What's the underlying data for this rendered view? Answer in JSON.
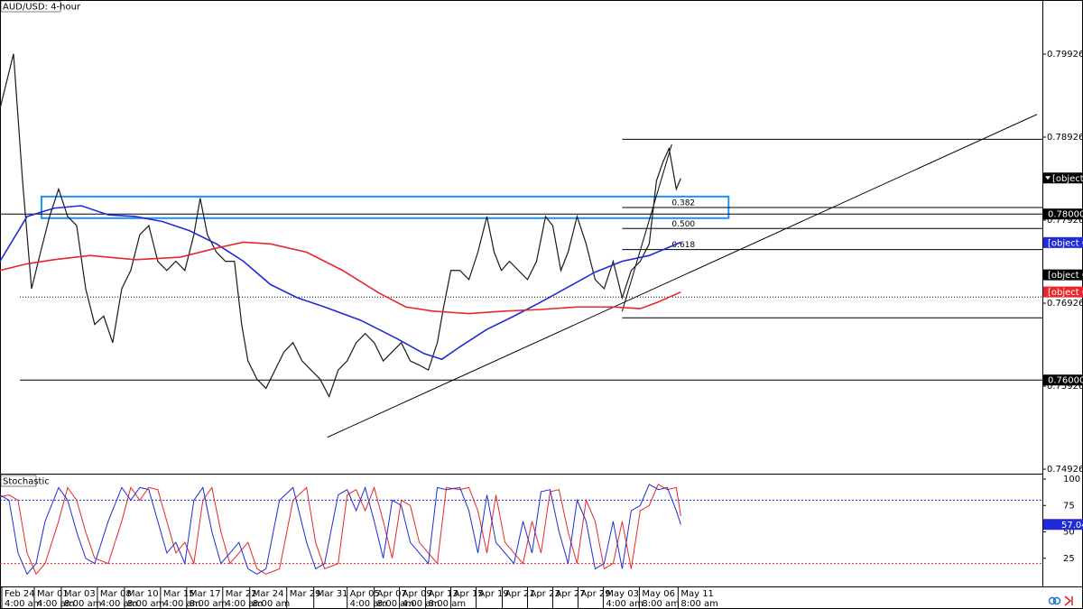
{
  "chart_data": [
    {
      "type": "price",
      "title": "AUD/USD: 4-hour",
      "xlim": [
        0,
        289
      ],
      "ylim": [
        0.74872,
        0.80578
      ],
      "yticks": [
        0.79926,
        0.78926,
        0.77926,
        0.76926,
        0.75926,
        0.74926
      ],
      "xticks": [
        {
          "value": 0.5,
          "label": "Feb 24"
        },
        {
          "value": 9.5,
          "label": "Mar 01"
        },
        {
          "value": 17,
          "label": "Mar 03"
        },
        {
          "value": 27,
          "label": "Mar 08"
        },
        {
          "value": 34.5,
          "label": "Mar 10"
        },
        {
          "value": 44.5,
          "label": "Mar 15"
        },
        {
          "value": 51.75,
          "label": "Mar 17"
        },
        {
          "value": 61.75,
          "label": "Mar 22"
        },
        {
          "value": 69.25,
          "label": "Mar 24"
        },
        {
          "value": 79.5,
          "label": "Mar 29"
        },
        {
          "value": 87,
          "label": "Mar 31"
        },
        {
          "value": 96.25,
          "label": "Apr 05"
        },
        {
          "value": 103.75,
          "label": "Apr 07"
        },
        {
          "value": 110.75,
          "label": "Apr 09"
        },
        {
          "value": 118,
          "label": "Apr 13"
        },
        {
          "value": 125,
          "label": "Apr 15"
        },
        {
          "value": 132,
          "label": "Apr 19"
        },
        {
          "value": 139.25,
          "label": "Apr 21"
        },
        {
          "value": 146.25,
          "label": "Apr 23"
        },
        {
          "value": 153.25,
          "label": "Apr 27"
        },
        {
          "value": 160.25,
          "label": "Apr 29"
        },
        {
          "value": 167.25,
          "label": "May 03"
        },
        {
          "value": 177.25,
          "label": "May 06"
        },
        {
          "value": 188,
          "label": "May 11"
        }
      ],
      "xtick_times": [
        "4:00 am",
        "4:00 am",
        "8:00 am",
        "4:00 am",
        "8:00 am",
        "4:00 am",
        "8:00 am",
        "4:00 am",
        "8:00 am",
        null,
        null,
        "4:00 am",
        "8:00 am",
        "4:00 am",
        "8:00 am",
        null,
        null,
        null,
        null,
        null,
        null,
        "4:00 am",
        "8:00 am",
        "8:00 am"
      ],
      "series": [
        {
          "name": "AUD/USD",
          "color": "#1a1a1a",
          "x": [
            0,
            3.75,
            6.25,
            8.75,
            11.25,
            13.75,
            16.25,
            18.75,
            21.25,
            23.75,
            26.25,
            28.75,
            31.25,
            33.75,
            36.25,
            38.75,
            41.25,
            43.75,
            46.25,
            48.75,
            51.25,
            53.75,
            55.5,
            57.5,
            60,
            62.5,
            65,
            67,
            68.75,
            71.25,
            73.75,
            76.25,
            78.75,
            81.25,
            83.75,
            86.25,
            88.75,
            91.25,
            93.75,
            96.25,
            98.75,
            101.25,
            103.75,
            106.25,
            108.75,
            111.25,
            113.75,
            116.25,
            118.75,
            121.25,
            123,
            125,
            127.5,
            130,
            132.5,
            135,
            137,
            139,
            141.25,
            143.75,
            146.25,
            148.75,
            151.25,
            153.25,
            155.5,
            157.5,
            160,
            162.5,
            165,
            167.5,
            170,
            172.5,
            175,
            177.5,
            180,
            182,
            183.75,
            185.5,
            187.5,
            188.75
          ],
          "values": [
            0.7927,
            0.7993,
            0.784,
            0.771,
            0.7754,
            0.7797,
            0.783,
            0.7797,
            0.7786,
            0.771,
            0.7667,
            0.7677,
            0.7645,
            0.771,
            0.7732,
            0.7775,
            0.7786,
            0.7743,
            0.7732,
            0.7743,
            0.7732,
            0.7775,
            0.7819,
            0.7775,
            0.7754,
            0.7743,
            0.7743,
            0.7667,
            0.7623,
            0.7601,
            0.759,
            0.7612,
            0.7634,
            0.7645,
            0.7623,
            0.7612,
            0.7601,
            0.758,
            0.7612,
            0.7623,
            0.7645,
            0.7656,
            0.7645,
            0.7623,
            0.7634,
            0.7645,
            0.7623,
            0.7618,
            0.7612,
            0.7645,
            0.7688,
            0.7732,
            0.7732,
            0.7721,
            0.7754,
            0.7797,
            0.7754,
            0.7732,
            0.7743,
            0.7732,
            0.7721,
            0.7743,
            0.7797,
            0.7786,
            0.7732,
            0.7754,
            0.7797,
            0.7764,
            0.7721,
            0.771,
            0.7743,
            0.7699,
            0.7732,
            0.7743,
            0.7764,
            0.784,
            0.7862,
            0.7879,
            0.783,
            0.7843
          ]
        },
        {
          "color": "#1f2bd6",
          "x": [
            0,
            7.5,
            15,
            22.5,
            30,
            37.5,
            45,
            52.5,
            60,
            67.5,
            75,
            82.5,
            90,
            100,
            110,
            117.5,
            122.5,
            127.5,
            135,
            142.5,
            150,
            157.5,
            165,
            172.5,
            180,
            188.75
          ],
          "values": [
            0.7743,
            0.7797,
            0.7807,
            0.781,
            0.7799,
            0.7797,
            0.7791,
            0.778,
            0.7764,
            0.7743,
            0.7715,
            0.7699,
            0.7688,
            0.7672,
            0.765,
            0.7632,
            0.7625,
            0.764,
            0.7661,
            0.7677,
            0.7694,
            0.7712,
            0.773,
            0.7743,
            0.775,
            0.7766
          ]
        },
        {
          "color": "#e8262b",
          "x": [
            0,
            7.5,
            15,
            25,
            37.5,
            50,
            60,
            67.5,
            75,
            85,
            95,
            105,
            112.5,
            120,
            130,
            140,
            150,
            160,
            170,
            177.5,
            182.5,
            188.75
          ],
          "values": [
            0.7732,
            0.774,
            0.7745,
            0.775,
            0.7745,
            0.7748,
            0.7759,
            0.7766,
            0.7764,
            0.7754,
            0.7732,
            0.7705,
            0.7688,
            0.7683,
            0.768,
            0.7683,
            0.7685,
            0.7688,
            0.7688,
            0.7686,
            0.7694,
            0.7706
          ]
        }
      ],
      "solid_levels": [
        0.78,
        0.76
      ],
      "dotted_levels": [
        0.77
      ],
      "zone": {
        "x": [
          11.5,
          202
        ],
        "y": [
          0.7795,
          0.7821
        ],
        "color": "#1e90ff"
      },
      "trendlines": [
        [
          [
            90.75,
            0.7531
          ],
          [
            287.5,
            0.792
          ]
        ],
        [
          [
            172.5,
            0.7683
          ],
          [
            186.25,
            0.7884
          ]
        ]
      ],
      "fib": {
        "x": 172.5,
        "high": 0.789,
        "low": 0.7675,
        "levels": [
          0.382,
          {
            "value": 0.5,
            "label": "0.500"
          },
          0.618
        ]
      },
      "price_markers": [
        {
          "value": 0.78434,
          "color": "#000000",
          "current": true
        },
        {
          "value": 0.78,
          "label": "0.78000",
          "color": "#000000"
        },
        {
          "value": 0.77656,
          "color": "#1f2bd6"
        },
        {
          "value": 0.77267,
          "color": "#000000"
        },
        {
          "value": 0.77061,
          "color": "#e8262b"
        },
        {
          "value": 0.76,
          "label": "0.76000",
          "color": "#000000"
        }
      ]
    },
    {
      "type": "stochastic",
      "title": "Stochastic",
      "xlim": [
        0,
        289
      ],
      "ylim": [
        0,
        100
      ],
      "yticks": [
        100,
        75,
        50,
        25
      ],
      "levels": [
        {
          "value": 80,
          "color": "#1f2bd6"
        },
        {
          "value": 20,
          "color": "#e8262b"
        }
      ],
      "x": [
        0,
        2.5,
        5,
        7.5,
        10,
        12.5,
        16.25,
        18.75,
        21.25,
        23.75,
        26.25,
        30,
        33.75,
        36.25,
        38.75,
        41.25,
        43.75,
        46.25,
        48.75,
        51.25,
        53.75,
        56.25,
        58.75,
        61.25,
        63.75,
        66.25,
        68.75,
        71.25,
        73.75,
        77.5,
        81.25,
        85,
        87.5,
        90,
        93.75,
        96.25,
        98.75,
        101.25,
        103.75,
        106.25,
        108.75,
        111.25,
        113.75,
        116.25,
        118.75,
        121.25,
        123.75,
        127.5,
        130,
        132.5,
        135,
        137.5,
        140,
        142.5,
        145,
        147.5,
        150,
        152.5,
        155,
        157.5,
        160,
        162.5,
        165,
        167.5,
        170,
        172.5,
        175,
        177.5,
        180,
        182.5,
        185,
        187.5,
        188.75
      ],
      "series": [
        {
          "color": "#1f2bd6",
          "values": [
            85,
            80,
            30,
            10,
            20,
            60,
            92,
            80,
            50,
            25,
            20,
            60,
            92,
            80,
            92,
            90,
            60,
            30,
            40,
            20,
            80,
            92,
            50,
            20,
            30,
            40,
            15,
            10,
            15,
            80,
            92,
            40,
            15,
            20,
            85,
            90,
            70,
            92,
            60,
            25,
            80,
            75,
            40,
            30,
            20,
            92,
            90,
            92,
            70,
            30,
            85,
            40,
            30,
            20,
            60,
            30,
            88,
            90,
            50,
            20,
            80,
            60,
            15,
            20,
            60,
            15,
            70,
            75,
            95,
            90,
            92,
            70,
            57.04
          ]
        },
        {
          "color": "#e8262b",
          "values": [
            83,
            85,
            80,
            30,
            10,
            20,
            60,
            92,
            80,
            50,
            25,
            20,
            60,
            92,
            80,
            92,
            90,
            60,
            30,
            40,
            20,
            80,
            92,
            50,
            20,
            30,
            40,
            15,
            10,
            15,
            80,
            92,
            40,
            15,
            20,
            85,
            90,
            70,
            92,
            60,
            25,
            80,
            75,
            40,
            30,
            20,
            92,
            90,
            92,
            70,
            30,
            85,
            40,
            30,
            20,
            60,
            30,
            88,
            90,
            50,
            20,
            80,
            60,
            15,
            20,
            60,
            15,
            70,
            75,
            95,
            90,
            92,
            65
          ]
        }
      ],
      "marker": {
        "value": 57.04,
        "color": "#1f2bd6"
      }
    }
  ]
}
